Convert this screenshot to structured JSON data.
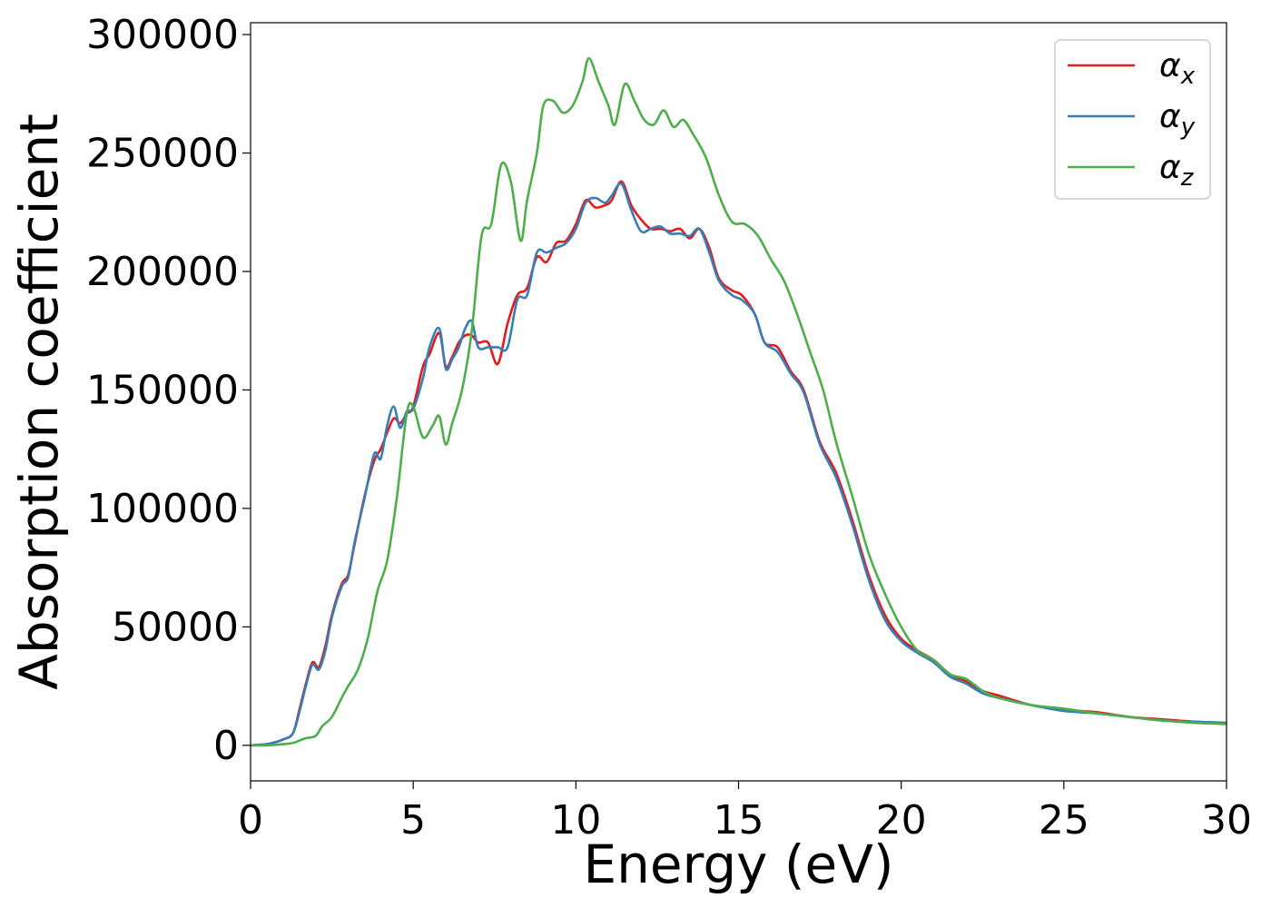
{
  "chart_data": {
    "type": "line",
    "title": "",
    "xlabel": "Energy (eV)",
    "ylabel": "Absorption coefficient",
    "xlim": [
      0,
      30
    ],
    "ylim": [
      -15000,
      305000
    ],
    "xticks": [
      0,
      5,
      10,
      15,
      20,
      25,
      30
    ],
    "yticks": [
      0,
      50000,
      100000,
      150000,
      200000,
      250000,
      300000
    ],
    "grid": false,
    "legend_position": "top-right",
    "series": [
      {
        "name": "α_x",
        "base": "α",
        "sub": "x",
        "color": "#e41a1c",
        "x": [
          0,
          0.5,
          0.8,
          1,
          1.3,
          1.5,
          1.7,
          1.9,
          2.1,
          2.3,
          2.5,
          2.8,
          3.0,
          3.2,
          3.5,
          3.8,
          4.0,
          4.2,
          4.4,
          4.6,
          4.8,
          5.0,
          5.3,
          5.5,
          5.8,
          6.0,
          6.2,
          6.4,
          6.6,
          6.8,
          7.0,
          7.3,
          7.6,
          7.9,
          8.2,
          8.5,
          8.8,
          9.1,
          9.4,
          9.7,
          10.0,
          10.3,
          10.6,
          10.9,
          11.1,
          11.4,
          11.7,
          12.0,
          12.3,
          12.6,
          12.9,
          13.2,
          13.5,
          13.8,
          14.1,
          14.4,
          14.8,
          15.1,
          15.5,
          15.8,
          16.2,
          16.6,
          17.0,
          17.5,
          18.0,
          18.5,
          19.0,
          19.5,
          20.0,
          20.5,
          21.0,
          21.5,
          22.0,
          22.5,
          23.0,
          24.0,
          25.0,
          26.0,
          27.0,
          28.0,
          29.0,
          30.0
        ],
        "y": [
          0,
          500,
          1500,
          2500,
          5000,
          15000,
          26000,
          35000,
          33000,
          42000,
          55000,
          68000,
          72000,
          85000,
          105000,
          120000,
          125000,
          132000,
          138000,
          136000,
          140000,
          143000,
          160000,
          165000,
          174000,
          160000,
          164000,
          170000,
          173000,
          173000,
          170000,
          170000,
          161000,
          178000,
          190000,
          193000,
          206000,
          204000,
          212000,
          213000,
          220000,
          230000,
          227000,
          228000,
          230000,
          238000,
          228000,
          222000,
          218000,
          218000,
          217000,
          218000,
          214000,
          218000,
          210000,
          197000,
          192000,
          190000,
          182000,
          170000,
          168000,
          158000,
          150000,
          128000,
          115000,
          95000,
          72000,
          55000,
          45000,
          40000,
          36000,
          30000,
          27000,
          23000,
          21000,
          17000,
          15000,
          14000,
          12000,
          11000,
          10000,
          9500
        ]
      },
      {
        "name": "α_y",
        "base": "α",
        "sub": "y",
        "color": "#377eb8",
        "x": [
          0,
          0.5,
          0.8,
          1,
          1.3,
          1.5,
          1.7,
          1.9,
          2.1,
          2.3,
          2.5,
          2.8,
          3.0,
          3.2,
          3.5,
          3.8,
          4.0,
          4.2,
          4.4,
          4.6,
          4.8,
          5.0,
          5.3,
          5.5,
          5.8,
          6.0,
          6.2,
          6.4,
          6.6,
          6.8,
          7.0,
          7.3,
          7.6,
          7.9,
          8.2,
          8.5,
          8.8,
          9.1,
          9.4,
          9.7,
          10.0,
          10.3,
          10.6,
          10.9,
          11.1,
          11.4,
          11.7,
          12.0,
          12.3,
          12.6,
          12.9,
          13.2,
          13.5,
          13.8,
          14.1,
          14.4,
          14.8,
          15.1,
          15.5,
          15.8,
          16.2,
          16.6,
          17.0,
          17.5,
          18.0,
          18.5,
          19.0,
          19.5,
          20.0,
          20.5,
          21.0,
          21.5,
          22.0,
          22.5,
          23.0,
          24.0,
          25.0,
          26.0,
          27.0,
          28.0,
          29.0,
          30.0
        ],
        "y": [
          0,
          500,
          1500,
          2500,
          5000,
          14000,
          25000,
          34000,
          32000,
          40000,
          54000,
          67000,
          71000,
          86000,
          104000,
          123000,
          121000,
          135000,
          143000,
          134000,
          141000,
          142000,
          155000,
          168000,
          176000,
          159000,
          163000,
          168000,
          176000,
          179000,
          168000,
          168000,
          168000,
          168000,
          188000,
          190000,
          208000,
          208000,
          210000,
          212000,
          218000,
          229000,
          231000,
          229000,
          232000,
          237000,
          226000,
          217000,
          218000,
          219000,
          216000,
          216000,
          215000,
          218000,
          208000,
          196000,
          190000,
          188000,
          182000,
          170000,
          166000,
          157000,
          149000,
          127000,
          113000,
          93000,
          70000,
          53000,
          44000,
          39000,
          35000,
          29000,
          26000,
          22000,
          20000,
          17000,
          14500,
          13500,
          12000,
          10500,
          10000,
          9500
        ]
      },
      {
        "name": "α_z",
        "base": "α",
        "sub": "z",
        "color": "#4daf4a",
        "x": [
          0,
          0.5,
          1.0,
          1.3,
          1.5,
          1.7,
          2.0,
          2.2,
          2.5,
          2.8,
          3.0,
          3.3,
          3.6,
          3.9,
          4.2,
          4.5,
          4.8,
          5.0,
          5.3,
          5.6,
          5.8,
          6.0,
          6.2,
          6.5,
          6.8,
          7.1,
          7.4,
          7.7,
          8.0,
          8.3,
          8.5,
          8.8,
          9.0,
          9.3,
          9.6,
          9.9,
          10.2,
          10.4,
          10.7,
          11.0,
          11.2,
          11.5,
          11.8,
          12.1,
          12.4,
          12.7,
          13.0,
          13.3,
          13.6,
          14.0,
          14.4,
          14.8,
          15.2,
          15.6,
          16.0,
          16.4,
          16.8,
          17.2,
          17.6,
          18.0,
          18.5,
          19.0,
          19.5,
          20.0,
          20.5,
          21.0,
          21.5,
          22.0,
          22.5,
          23.0,
          24.0,
          25.0,
          26.0,
          27.0,
          28.0,
          29.0,
          30.0
        ],
        "y": [
          0,
          0,
          500,
          1000,
          2000,
          3000,
          4000,
          8000,
          12000,
          20000,
          25000,
          32000,
          45000,
          65000,
          78000,
          105000,
          140000,
          143000,
          130000,
          135000,
          139000,
          127000,
          136000,
          150000,
          175000,
          215000,
          220000,
          245000,
          238000,
          213000,
          230000,
          250000,
          270000,
          272000,
          267000,
          270000,
          280000,
          290000,
          280000,
          270000,
          262000,
          279000,
          272000,
          264000,
          262000,
          268000,
          261000,
          264000,
          258000,
          248000,
          232000,
          221000,
          220000,
          215000,
          205000,
          196000,
          182000,
          166000,
          150000,
          128000,
          105000,
          81000,
          64000,
          50000,
          40000,
          36000,
          30000,
          28000,
          23000,
          20000,
          17000,
          15500,
          13500,
          12000,
          10500,
          9500,
          9000
        ]
      }
    ]
  }
}
